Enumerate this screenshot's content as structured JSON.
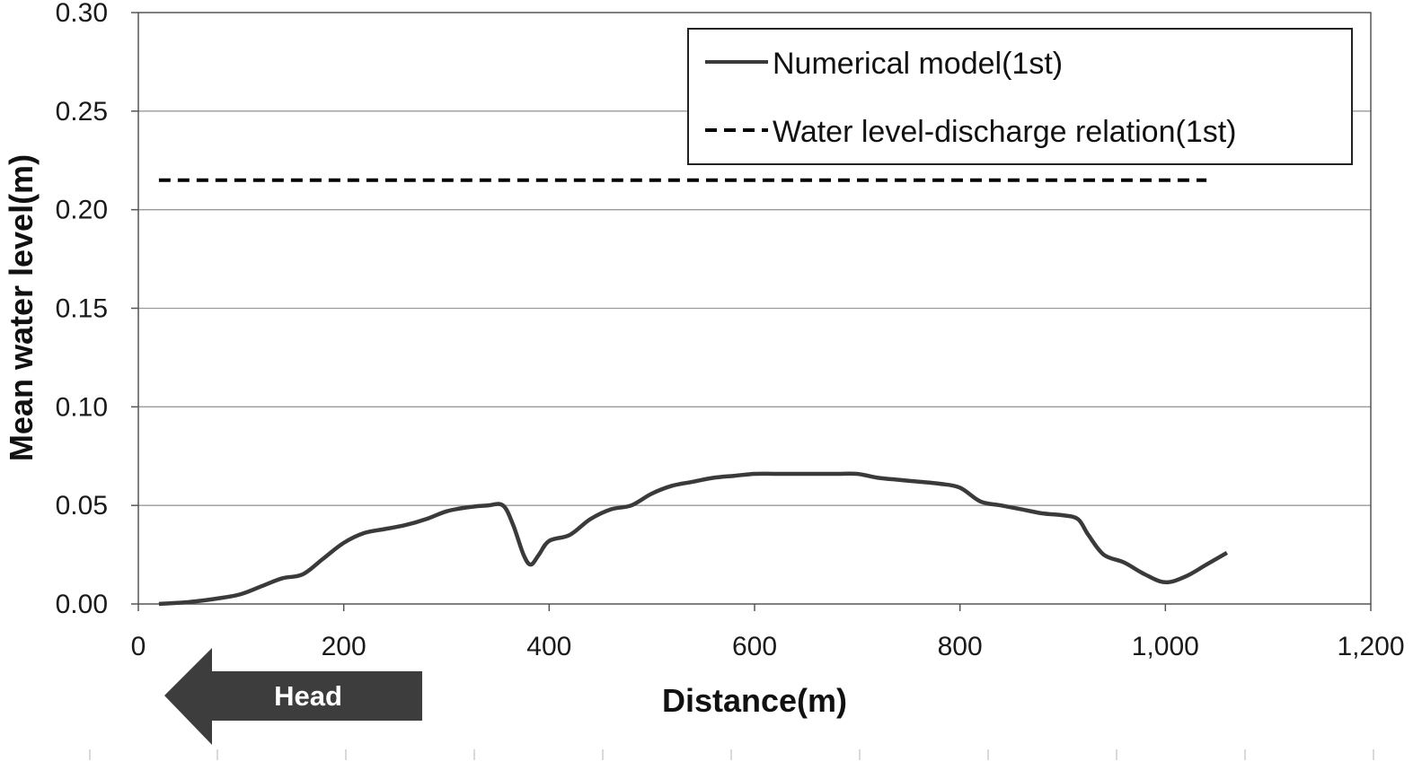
{
  "chart_data": {
    "type": "line",
    "title": "",
    "xlabel": "Distance(m)",
    "ylabel": "Mean water level(m)",
    "xlim": [
      0,
      1200
    ],
    "ylim": [
      0,
      0.3
    ],
    "x_ticks": [
      "0",
      "200",
      "400",
      "600",
      "800",
      "1,000",
      "1,200"
    ],
    "x_tick_values": [
      0,
      200,
      400,
      600,
      800,
      1000,
      1200
    ],
    "y_ticks": [
      "0.00",
      "0.05",
      "0.10",
      "0.15",
      "0.20",
      "0.25",
      "0.30"
    ],
    "y_tick_values": [
      0,
      0.05,
      0.1,
      0.15,
      0.2,
      0.25,
      0.3
    ],
    "grid": "horizontal",
    "legend_position": "top-right",
    "series": [
      {
        "name": "Numerical model(1st)",
        "style": "solid",
        "color": "#3a3a3a",
        "x": [
          20,
          50,
          80,
          100,
          120,
          140,
          160,
          180,
          200,
          220,
          240,
          260,
          280,
          300,
          320,
          340,
          355,
          365,
          375,
          382,
          390,
          400,
          420,
          440,
          460,
          480,
          500,
          520,
          540,
          560,
          580,
          600,
          620,
          640,
          660,
          680,
          700,
          720,
          740,
          760,
          780,
          800,
          820,
          840,
          860,
          880,
          900,
          915,
          925,
          940,
          960,
          980,
          1000,
          1020,
          1040,
          1060
        ],
        "y": [
          0.0,
          0.001,
          0.003,
          0.005,
          0.009,
          0.013,
          0.015,
          0.023,
          0.031,
          0.036,
          0.038,
          0.04,
          0.043,
          0.047,
          0.049,
          0.05,
          0.05,
          0.04,
          0.025,
          0.02,
          0.025,
          0.032,
          0.035,
          0.043,
          0.048,
          0.05,
          0.056,
          0.06,
          0.062,
          0.064,
          0.065,
          0.066,
          0.066,
          0.066,
          0.066,
          0.066,
          0.066,
          0.064,
          0.063,
          0.062,
          0.061,
          0.059,
          0.052,
          0.05,
          0.048,
          0.046,
          0.045,
          0.043,
          0.035,
          0.025,
          0.021,
          0.015,
          0.011,
          0.014,
          0.02,
          0.026
        ]
      },
      {
        "name": "Water level-discharge relation(1st)",
        "style": "dashed",
        "color": "#000000",
        "x": [
          20,
          1040
        ],
        "y": [
          0.215,
          0.215
        ]
      }
    ],
    "annotations": [
      {
        "text": "Head",
        "kind": "left-arrow",
        "color": "#3d3d3d"
      }
    ]
  }
}
